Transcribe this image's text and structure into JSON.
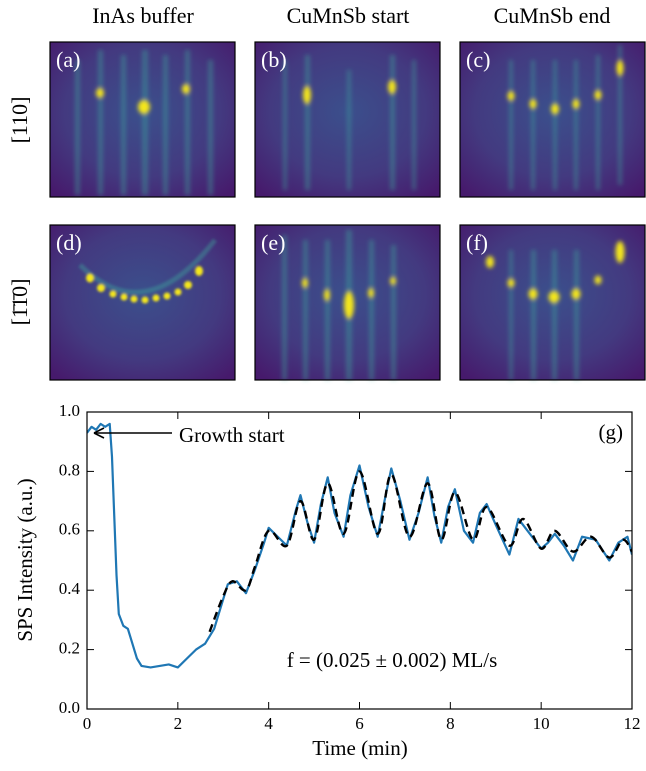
{
  "panels": {
    "column_titles": [
      "InAs buffer",
      "CuMnSb start",
      "CuMnSb end"
    ],
    "row_labels": [
      "[110]",
      "[1̄1̄0]"
    ],
    "labels": [
      "(a)",
      "(b)",
      "(c)",
      "(d)",
      "(e)",
      "(f)"
    ]
  },
  "chart_data": {
    "type": "line",
    "xlabel": "Time (min)",
    "ylabel": "SPS Intensity (a.u.)",
    "annotations": [
      "Growth start",
      "(g)",
      "f = (0.025 ± 0.002) ML/s"
    ],
    "xlim": [
      0,
      12
    ],
    "xticks": [
      0,
      2,
      4,
      6,
      8,
      10,
      12
    ],
    "ylim": [
      0,
      1
    ],
    "yticks": [
      {
        "value": 0,
        "label": "0.0"
      },
      0.2,
      0.4,
      0.6,
      0.8,
      {
        "value": 1,
        "label": "1.0"
      }
    ],
    "series": [
      {
        "color": "#1f77b4",
        "linestyle": "solid",
        "x": [
          0,
          0.1,
          0.2,
          0.3,
          0.4,
          0.5,
          0.55,
          0.6,
          0.65,
          0.7,
          0.8,
          0.9,
          1.0,
          1.1,
          1.2,
          1.4,
          1.6,
          1.8,
          2.0,
          2.2,
          2.4,
          2.6,
          2.8,
          3.0,
          3.1,
          3.3,
          3.5,
          3.7,
          3.9,
          4.0,
          4.2,
          4.4,
          4.6,
          4.7,
          4.85,
          5.0,
          5.15,
          5.3,
          5.45,
          5.65,
          5.8,
          6.0,
          6.2,
          6.4,
          6.55,
          6.7,
          6.9,
          7.1,
          7.3,
          7.5,
          7.65,
          7.8,
          7.95,
          8.1,
          8.3,
          8.5,
          8.65,
          8.8,
          9.0,
          9.3,
          9.5,
          9.7,
          10.0,
          10.15,
          10.3,
          10.5,
          10.7,
          10.9,
          11.2,
          11.5,
          11.7,
          11.9,
          12.0
        ],
        "values": [
          0.93,
          0.95,
          0.94,
          0.96,
          0.95,
          0.96,
          0.85,
          0.65,
          0.45,
          0.32,
          0.28,
          0.27,
          0.22,
          0.17,
          0.145,
          0.14,
          0.145,
          0.15,
          0.14,
          0.17,
          0.2,
          0.22,
          0.27,
          0.37,
          0.42,
          0.43,
          0.39,
          0.47,
          0.56,
          0.61,
          0.58,
          0.55,
          0.67,
          0.72,
          0.63,
          0.56,
          0.69,
          0.78,
          0.66,
          0.58,
          0.72,
          0.82,
          0.68,
          0.58,
          0.7,
          0.81,
          0.7,
          0.57,
          0.66,
          0.78,
          0.65,
          0.56,
          0.68,
          0.74,
          0.6,
          0.56,
          0.66,
          0.69,
          0.62,
          0.52,
          0.64,
          0.6,
          0.54,
          0.56,
          0.59,
          0.55,
          0.5,
          0.58,
          0.57,
          0.5,
          0.56,
          0.58,
          0.52
        ]
      },
      {
        "color": "#000000",
        "linestyle": "dashed",
        "x": [
          2.7,
          3.0,
          3.2,
          3.5,
          3.7,
          4.0,
          4.4,
          4.7,
          5.0,
          5.3,
          5.65,
          6.0,
          6.4,
          6.7,
          7.1,
          7.5,
          7.8,
          8.1,
          8.5,
          8.8,
          9.3,
          9.6,
          10.0,
          10.3,
          10.7,
          11.1,
          11.5,
          11.8,
          12.0
        ],
        "values": [
          0.26,
          0.38,
          0.43,
          0.4,
          0.48,
          0.6,
          0.55,
          0.7,
          0.57,
          0.76,
          0.59,
          0.8,
          0.59,
          0.79,
          0.58,
          0.76,
          0.57,
          0.73,
          0.57,
          0.68,
          0.55,
          0.64,
          0.54,
          0.6,
          0.53,
          0.58,
          0.51,
          0.57,
          0.53
        ]
      }
    ]
  }
}
